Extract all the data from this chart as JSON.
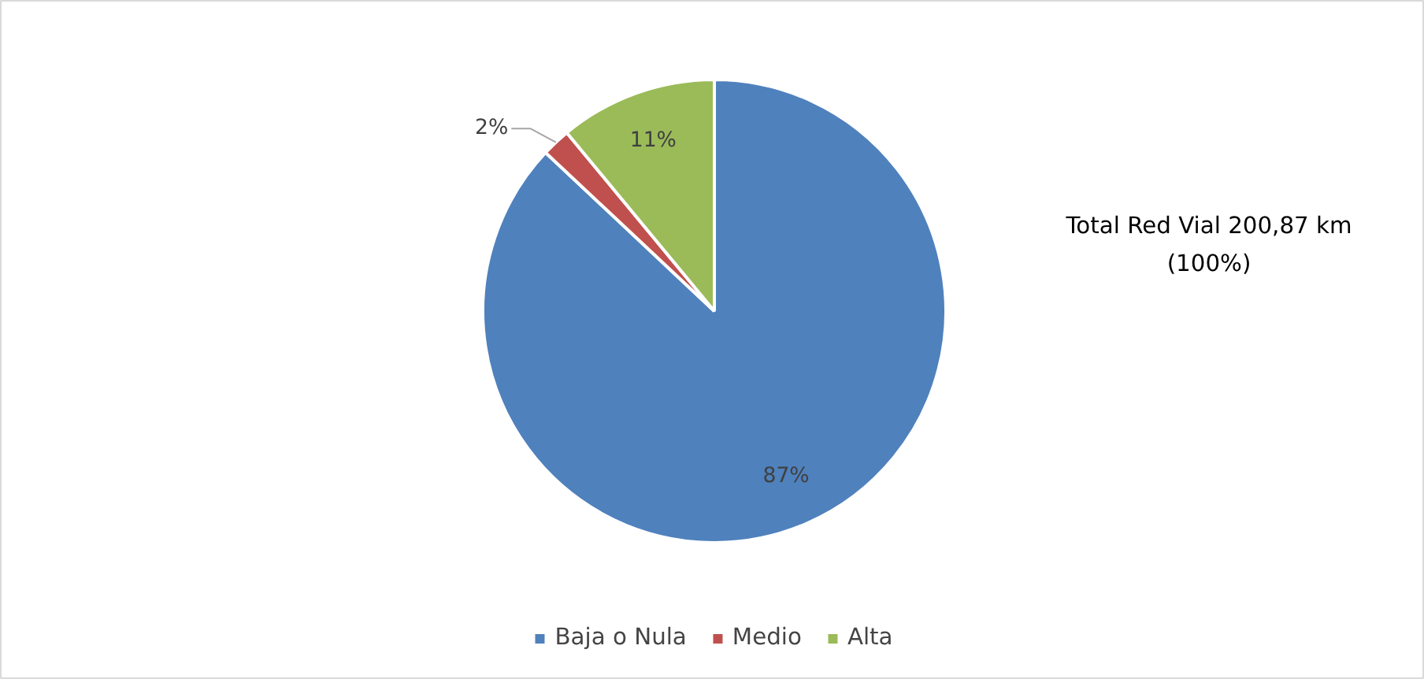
{
  "chart_data": {
    "type": "pie",
    "categories": [
      "Baja o Nula",
      "Medio",
      "Alta"
    ],
    "values": [
      87,
      2,
      11
    ],
    "colors": [
      "#4f81bd",
      "#c0504d",
      "#9bbb59"
    ],
    "value_labels": [
      "87%",
      "2%",
      "11%"
    ],
    "annotations": [
      "Total Red Vial 200,87 km",
      "(100%)"
    ],
    "legend": "bottom"
  }
}
